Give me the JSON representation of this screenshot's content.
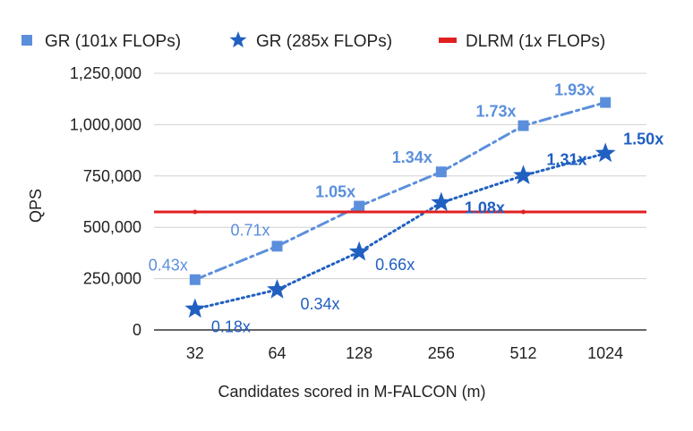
{
  "chart_data": {
    "type": "line",
    "title": "",
    "xlabel": "Candidates scored in M-FALCON (m)",
    "ylabel": "QPS",
    "categories": [
      "32",
      "64",
      "128",
      "256",
      "512",
      "1024"
    ],
    "ylim": [
      0,
      1250000
    ],
    "yticks": [
      0,
      250000,
      500000,
      750000,
      1000000,
      1250000
    ],
    "ytick_labels": [
      "0",
      "250,000",
      "500,000",
      "750,000",
      "1,000,000",
      "1,250,000"
    ],
    "grid": true,
    "legend_position": "top",
    "series": [
      {
        "name": "GR (101x FLOPs)",
        "marker": "square",
        "line_style": "dash-dot",
        "color": "#5b8fdc",
        "values": [
          245000,
          408000,
          603000,
          770000,
          995000,
          1108000
        ],
        "labels": [
          "0.43x",
          "0.71x",
          "1.05x",
          "1.34x",
          "1.73x",
          "1.93x"
        ],
        "label_bold": [
          false,
          false,
          true,
          true,
          true,
          true
        ]
      },
      {
        "name": "GR (285x FLOPs)",
        "marker": "star",
        "line_style": "dotted",
        "color": "#2060c0",
        "values": [
          102000,
          196000,
          380000,
          620000,
          752000,
          860000
        ],
        "labels": [
          "0.18x",
          "0.34x",
          "0.66x",
          "1.08x",
          "1.31x",
          "1.50x"
        ],
        "label_bold": [
          false,
          false,
          false,
          true,
          true,
          true
        ]
      },
      {
        "name": "DLRM (1x FLOPs)",
        "marker": "none",
        "line_style": "solid",
        "color": "#e02020",
        "values": [
          575000,
          575000,
          575000,
          575000,
          575000,
          575000
        ]
      }
    ]
  }
}
